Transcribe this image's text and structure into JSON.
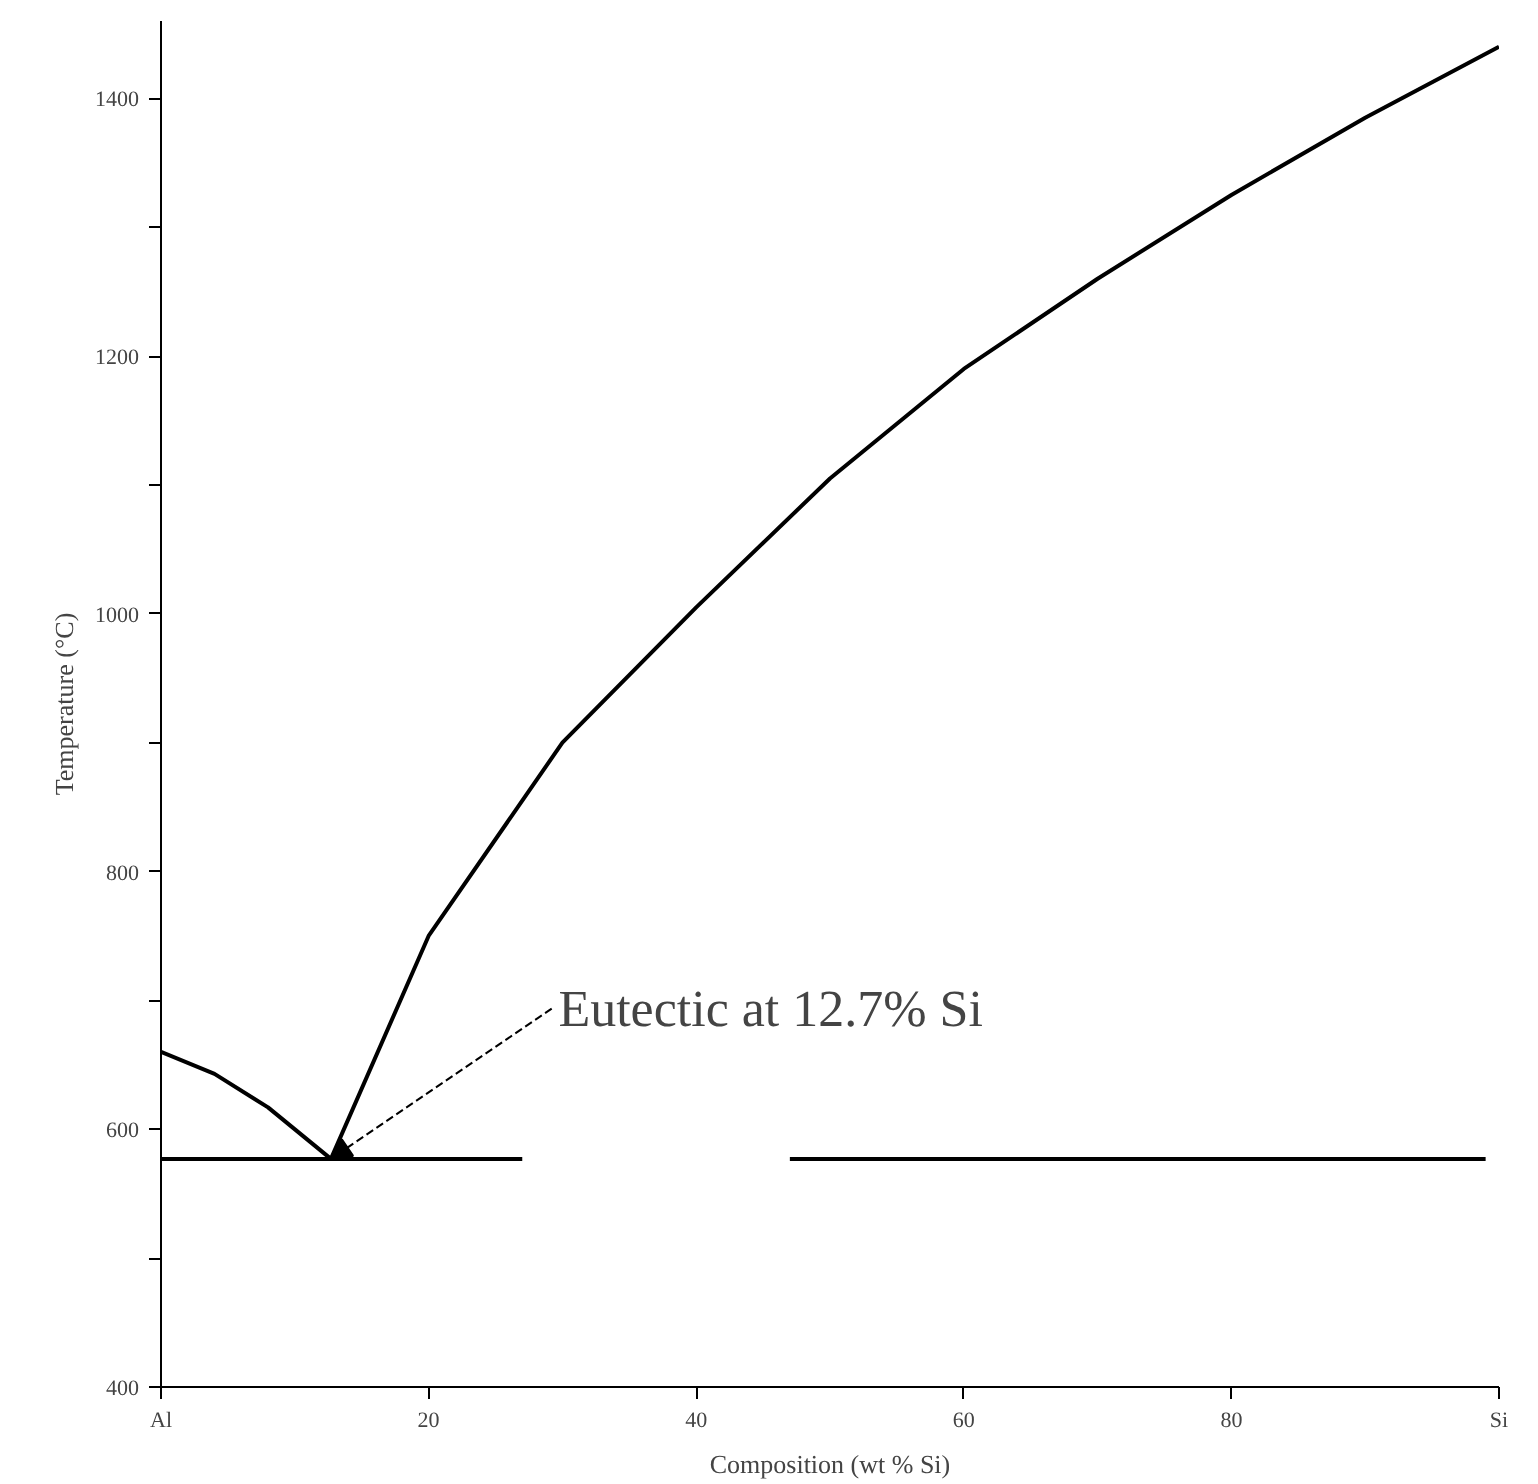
{
  "chart_data": {
    "type": "line",
    "xlabel": "Composition (wt % Si)",
    "ylabel": "Temperature (°C)",
    "xlim": [
      0,
      100
    ],
    "ylim": [
      400,
      1460
    ],
    "xticks": [
      {
        "value": 0,
        "label": "Al"
      },
      20,
      40,
      60,
      80,
      {
        "value": 100,
        "label": "Si"
      }
    ],
    "yticks": [
      400,
      {
        "value": 500,
        "label": null
      },
      600,
      {
        "value": 700,
        "label": null
      },
      800,
      {
        "value": 900,
        "label": null
      },
      1000,
      {
        "value": 1100,
        "label": null
      },
      1200,
      {
        "value": 1300,
        "label": null
      },
      1400
    ],
    "grid": false,
    "marker": "none",
    "line_style": "solid",
    "series": [
      {
        "color": "#000000",
        "x": [
          0,
          4,
          8,
          12.7
        ],
        "values": [
          660,
          643,
          617,
          577
        ]
      },
      {
        "color": "#000000",
        "x": [
          12.7,
          20,
          30,
          40,
          50,
          60,
          70,
          80,
          90,
          100
        ],
        "values": [
          577,
          750,
          900,
          1005,
          1105,
          1190,
          1260,
          1325,
          1385,
          1440
        ]
      },
      {
        "color": "#000000",
        "x": [
          0,
          27,
          37,
          47,
          99
        ],
        "values": [
          577,
          577,
          null,
          577,
          577
        ]
      }
    ],
    "annotations": [
      {
        "text": "Eutectic at 12.7% Si",
        "x": 12.7,
        "y": 577
      }
    ]
  }
}
